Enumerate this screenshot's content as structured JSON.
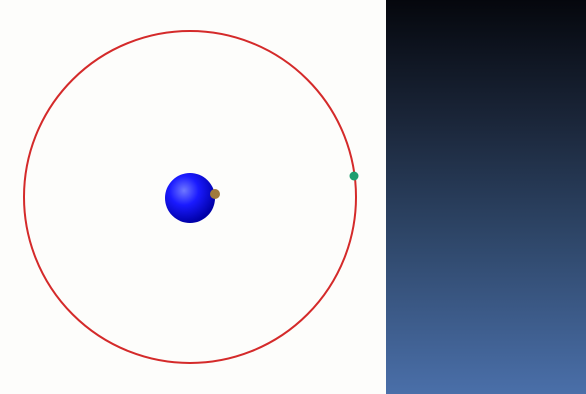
{
  "scene": {
    "colors": {
      "background": "#fdfdfb",
      "orbit": "#d42a2a",
      "central_body": "#1a1aff",
      "central_body_highlight": "#6f78ff",
      "central_body_shadow": "#0000a8",
      "moon": "#a07a3c",
      "satellite": "#1f9e6f"
    }
  },
  "side_panel": {
    "colors": {
      "top": "#05070d",
      "bottom": "#4a6fa9"
    }
  }
}
